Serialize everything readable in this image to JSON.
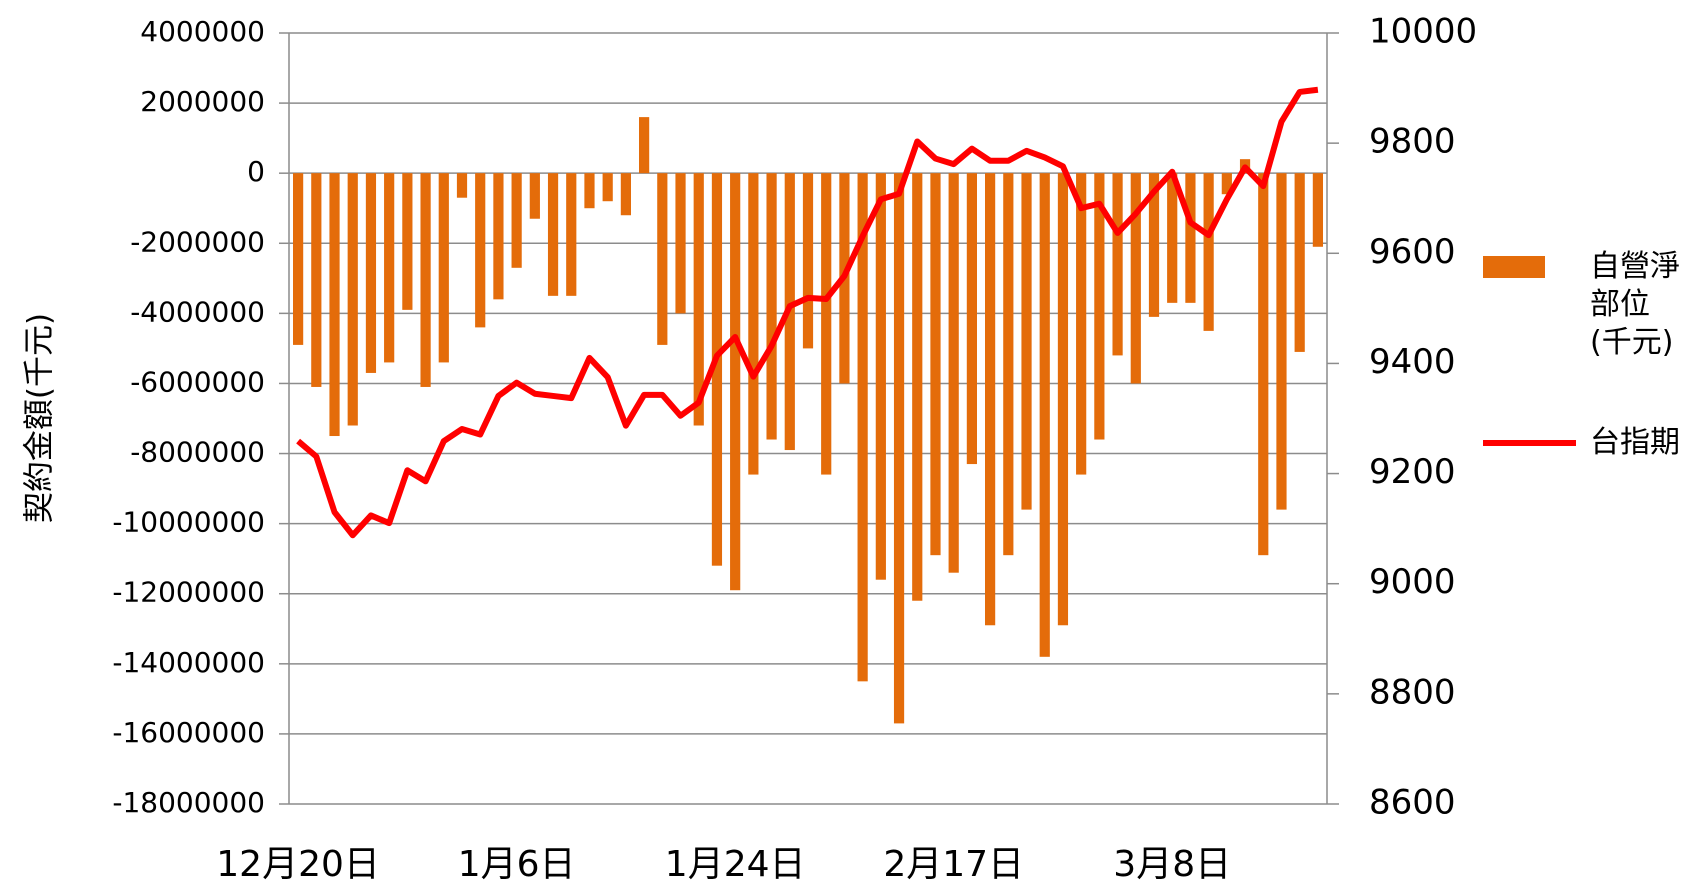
{
  "chart_data": {
    "type": "bar_line",
    "y_label": "契約金額(千元)",
    "categories": [
      "12月20日",
      null,
      null,
      null,
      null,
      null,
      null,
      null,
      null,
      null,
      null,
      null,
      "1月6日",
      null,
      null,
      null,
      null,
      null,
      null,
      null,
      null,
      null,
      null,
      null,
      "1月24日",
      null,
      null,
      null,
      null,
      null,
      null,
      null,
      null,
      null,
      null,
      null,
      "2月17日",
      null,
      null,
      null,
      null,
      null,
      null,
      null,
      null,
      null,
      null,
      null,
      "3月8日",
      null,
      null,
      null,
      null,
      null,
      null,
      null,
      null
    ],
    "series": [
      {
        "name": "自營淨部位(千元)",
        "type": "bar",
        "color": "#e46c0a",
        "values": [
          -4900000,
          -6100000,
          -7500000,
          -7200000,
          -5700000,
          -5400000,
          -3900000,
          -6100000,
          -5400000,
          -700000,
          -4400000,
          -3600000,
          -2700000,
          -1300000,
          -3500000,
          -3500000,
          -1000000,
          -800000,
          -1200000,
          1600000,
          -4900000,
          -4000000,
          -7200000,
          -11200000,
          -11900000,
          -8600000,
          -7600000,
          -7900000,
          -5000000,
          -8600000,
          -6000000,
          -14500000,
          -11600000,
          -15700000,
          -12200000,
          -10900000,
          -11400000,
          -8300000,
          -12900000,
          -10900000,
          -9600000,
          -13800000,
          -12900000,
          -8600000,
          -7600000,
          -5200000,
          -6000000,
          -4100000,
          -3700000,
          -3700000,
          -4500000,
          -600000,
          400000,
          -10900000,
          -9600000,
          -5100000,
          -2100000
        ]
      },
      {
        "name": "台指期",
        "type": "line",
        "axis": "y2",
        "color": "#ff0000",
        "values": [
          9259,
          9231,
          9130,
          9088,
          9124,
          9110,
          9206,
          9186,
          9259,
          9281,
          9271,
          9341,
          9365,
          9345,
          9341,
          9337,
          9410,
          9375,
          9287,
          9343,
          9343,
          9305,
          9329,
          9414,
          9448,
          9376,
          9432,
          9504,
          9519,
          9517,
          9559,
          9631,
          9698,
          9708,
          9803,
          9772,
          9762,
          9790,
          9768,
          9768,
          9786,
          9774,
          9758,
          9682,
          9690,
          9637,
          9672,
          9712,
          9748,
          9656,
          9633,
          9698,
          9756,
          9722,
          9839,
          9893,
          9897
        ]
      }
    ],
    "ylim": [
      -18000000,
      4000000
    ],
    "yticks": [
      -18000000,
      -16000000,
      -14000000,
      -12000000,
      -10000000,
      -8000000,
      -6000000,
      -4000000,
      -2000000,
      0,
      2000000,
      4000000
    ],
    "y2lim": [
      8600,
      10000
    ],
    "y2ticks": [
      8600,
      8800,
      9000,
      9200,
      9400,
      9600,
      9800,
      10000
    ],
    "grid": true,
    "legend": "right"
  }
}
